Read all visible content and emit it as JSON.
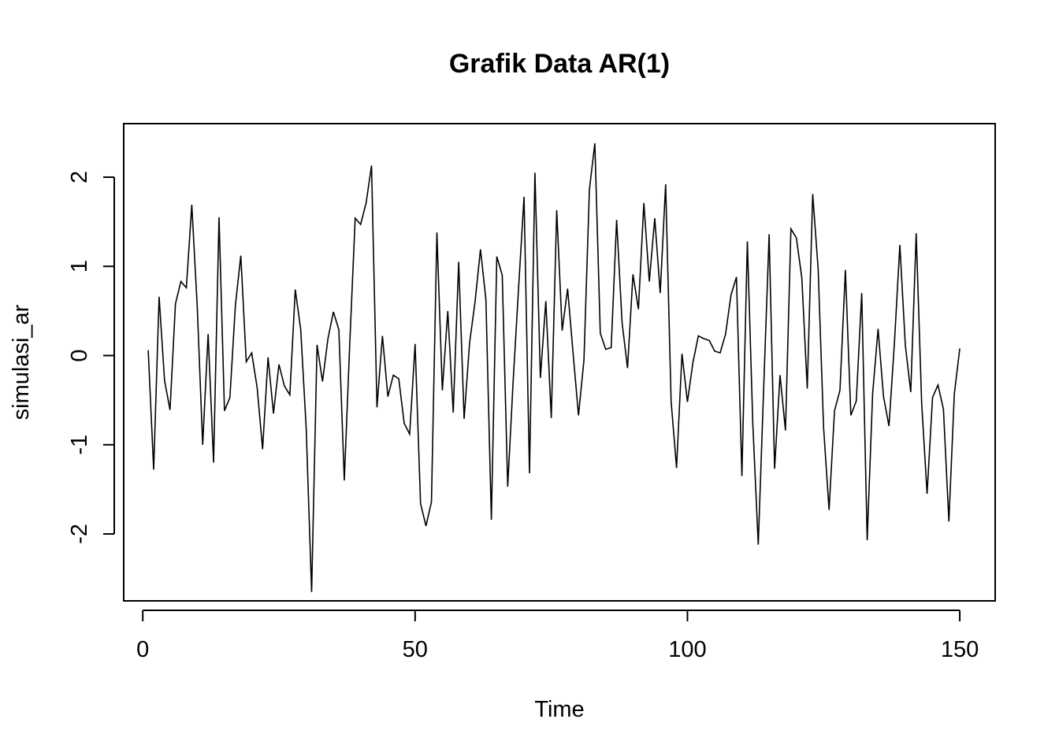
{
  "chart_data": {
    "type": "line",
    "title": "Grafik Data AR(1)",
    "xlabel": "Time",
    "ylabel": "simulasi_ar",
    "xlim": [
      -3.5,
      156.5
    ],
    "ylim": [
      -2.75,
      2.6
    ],
    "x_ticks": [
      0,
      50,
      100,
      150
    ],
    "x_tick_labels": [
      "0",
      "50",
      "100",
      "150"
    ],
    "y_ticks": [
      -2,
      -1,
      0,
      1,
      2
    ],
    "y_tick_labels": [
      "-2",
      "-1",
      "0",
      "1",
      "2"
    ],
    "grid": false,
    "line_color": "#000000",
    "series": [
      {
        "x_start": 1,
        "values": [
          0.06,
          -1.28,
          0.66,
          -0.28,
          -0.61,
          0.58,
          0.83,
          0.76,
          1.69,
          0.55,
          -1.0,
          0.24,
          -1.2,
          1.55,
          -0.62,
          -0.47,
          0.56,
          1.12,
          -0.07,
          0.03,
          -0.36,
          -1.05,
          -0.02,
          -0.65,
          -0.1,
          -0.34,
          -0.44,
          0.74,
          0.29,
          -0.81,
          -2.65,
          0.12,
          -0.29,
          0.19,
          0.49,
          0.29,
          -1.4,
          0.13,
          1.54,
          1.47,
          1.71,
          2.13,
          -0.58,
          0.22,
          -0.46,
          -0.22,
          -0.26,
          -0.76,
          -0.88,
          0.13,
          -1.66,
          -1.91,
          -1.64,
          1.38,
          -0.39,
          0.5,
          -0.64,
          1.05,
          -0.71,
          0.14,
          0.6,
          1.19,
          0.63,
          -1.84,
          1.11,
          0.9,
          -1.47,
          -0.29,
          0.76,
          1.78,
          -1.32,
          2.05,
          -0.25,
          0.61,
          -0.7,
          1.63,
          0.28,
          0.75,
          0.03,
          -0.67,
          -0.05,
          1.86,
          2.38,
          0.25,
          0.07,
          0.09,
          1.52,
          0.37,
          -0.14,
          0.91,
          0.52,
          1.71,
          0.83,
          1.54,
          0.7,
          1.92,
          -0.51,
          -1.26,
          0.02,
          -0.52,
          -0.08,
          0.22,
          0.19,
          0.17,
          0.05,
          0.03,
          0.24,
          0.68,
          0.88,
          -1.35,
          1.28,
          -0.76,
          -2.12,
          -0.36,
          1.36,
          -1.27,
          -0.22,
          -0.84,
          1.42,
          1.32,
          0.87,
          -0.37,
          1.81,
          0.97,
          -0.81,
          -1.73,
          -0.62,
          -0.39,
          0.96,
          -0.67,
          -0.51,
          0.7,
          -2.07,
          -0.43,
          0.3,
          -0.46,
          -0.79,
          0.14,
          1.24,
          0.12,
          -0.41,
          1.37,
          -0.53,
          -1.55,
          -0.47,
          -0.33,
          -0.6,
          -1.86,
          -0.43,
          0.08
        ]
      }
    ]
  }
}
